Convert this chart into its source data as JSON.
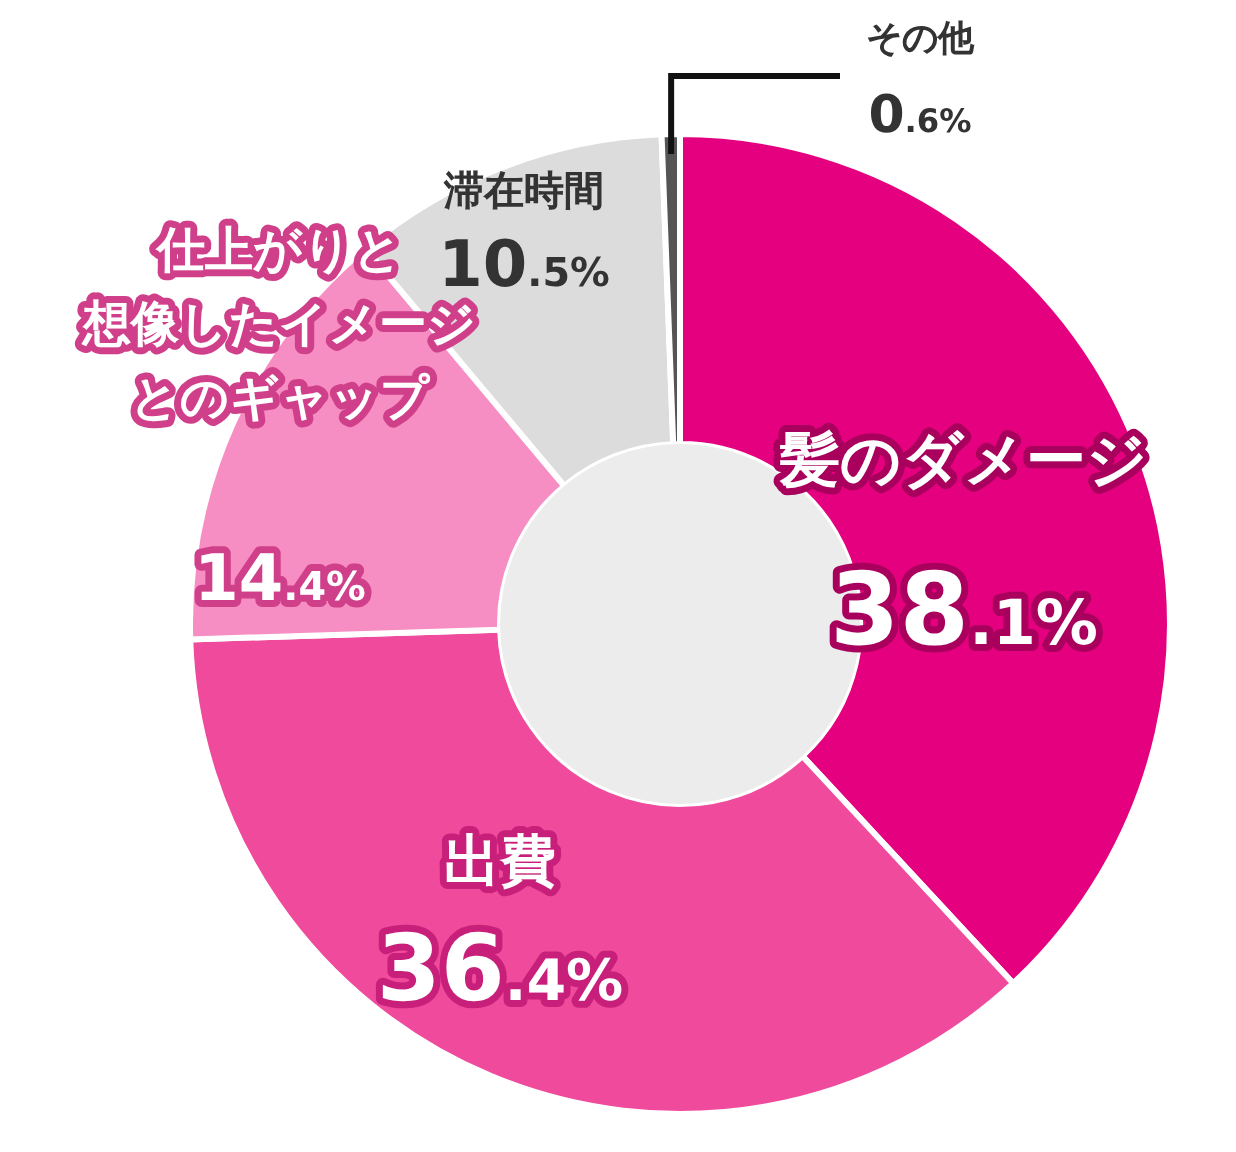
{
  "chart_data": {
    "type": "donut",
    "categories": [
      "髪のダメージ",
      "出費",
      "仕上がりと想像したイメージとのギャップ",
      "滞在時間",
      "その他"
    ],
    "values": [
      38.1,
      36.4,
      14.4,
      10.5,
      0.6
    ],
    "value_labels": [
      "38.1%",
      "36.4%",
      "14.4%",
      "10.5%",
      "0.6%"
    ],
    "colors": [
      "#e4007f",
      "#ef4a9c",
      "#f78ec3",
      "#dcdcdc",
      "#555555"
    ]
  }
}
